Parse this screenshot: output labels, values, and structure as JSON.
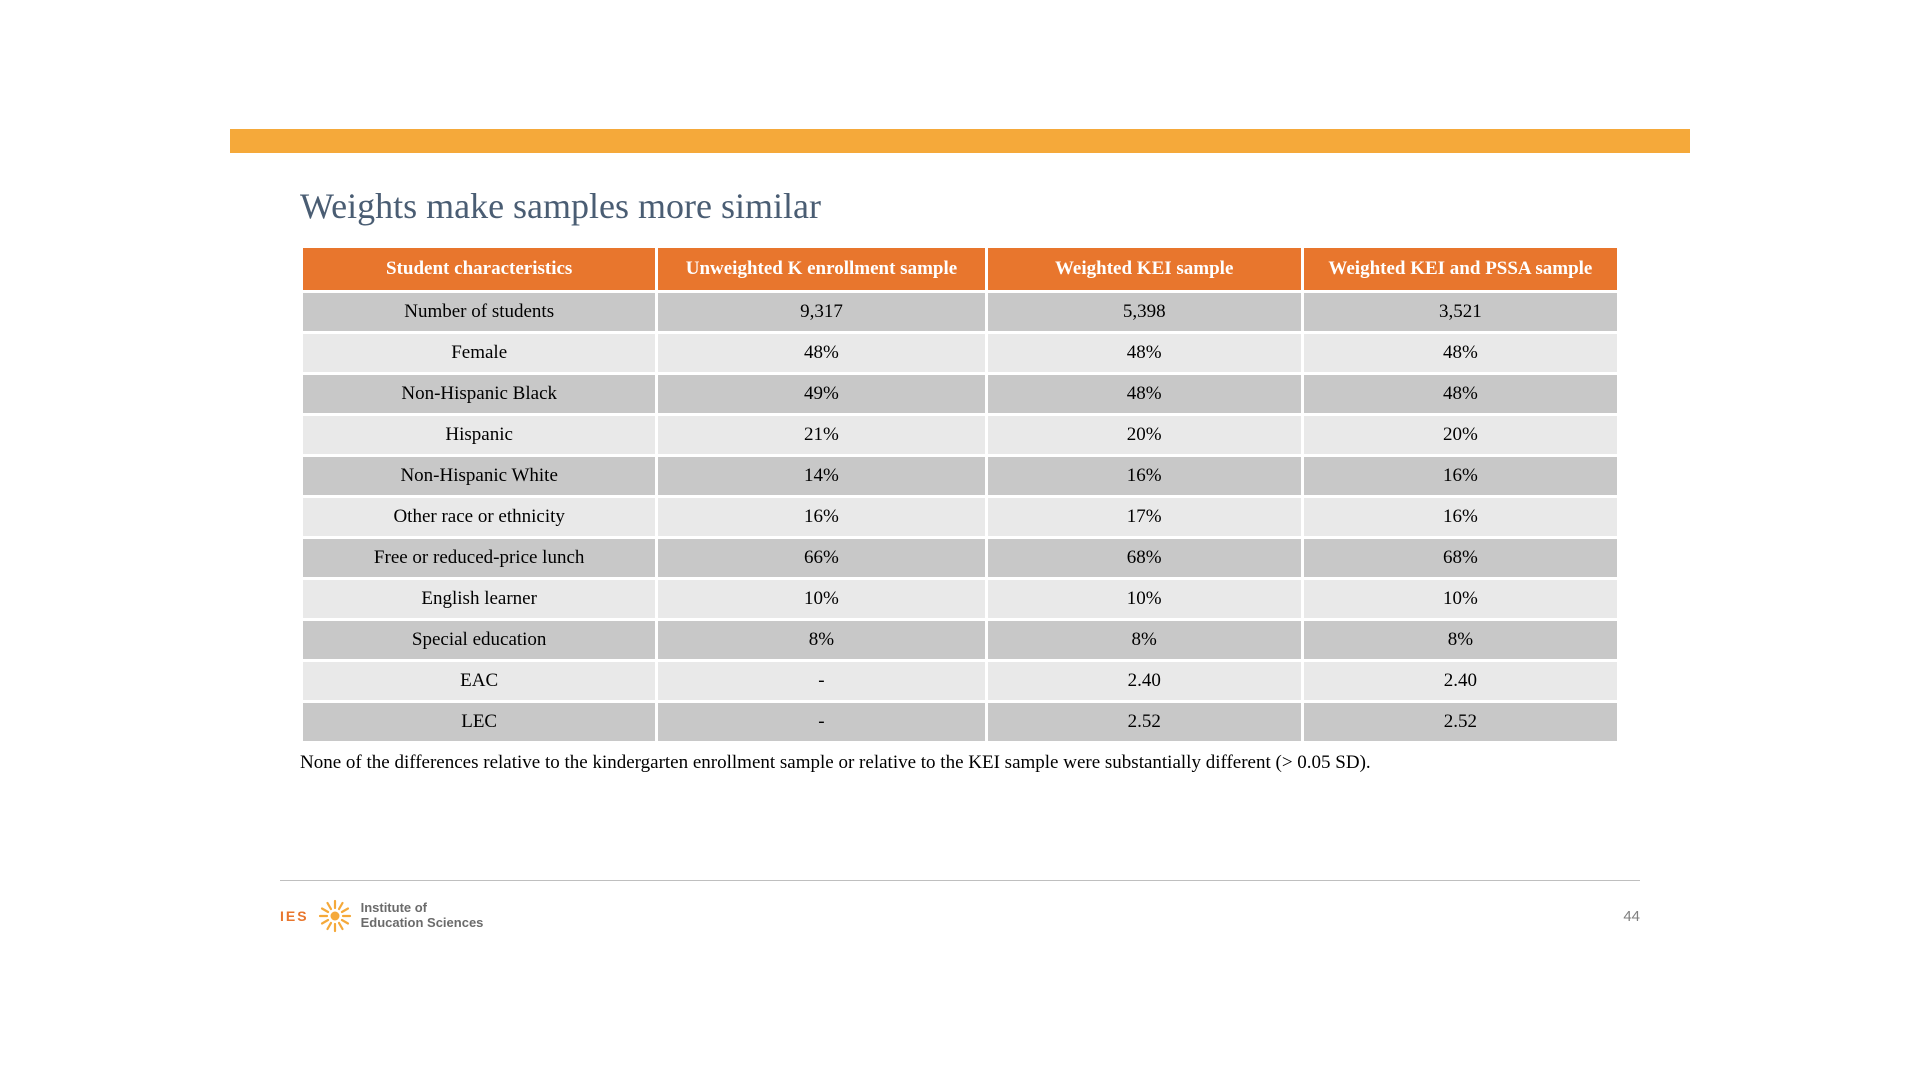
{
  "slide": {
    "title": "Weights make samples more similar",
    "title_color": "#4a5d73",
    "top_bar_color": "#f5a93a",
    "page_number": "44",
    "page_number_color": "#808080",
    "footnote": "None of the differences relative to the kindergarten enrollment sample or relative to the KEI sample were substantially different (> 0.05 SD)."
  },
  "table": {
    "header_bg": "#e8762d",
    "header_text_color": "#ffffff",
    "row_bg_odd": "#c8c8c8",
    "row_bg_even": "#e9e9e9",
    "cell_text_color": "#000000",
    "col_widths_pct": [
      27,
      25,
      24,
      24
    ],
    "columns": [
      "Student characteristics",
      "Unweighted K enrollment sample",
      "Weighted KEI sample",
      "Weighted KEI and PSSA sample"
    ],
    "rows": [
      [
        "Number of students",
        "9,317",
        "5,398",
        "3,521"
      ],
      [
        "Female",
        "48%",
        "48%",
        "48%"
      ],
      [
        "Non-Hispanic Black",
        "49%",
        "48%",
        "48%"
      ],
      [
        "Hispanic",
        "21%",
        "20%",
        "20%"
      ],
      [
        "Non-Hispanic White",
        "14%",
        "16%",
        "16%"
      ],
      [
        "Other race or ethnicity",
        "16%",
        "17%",
        "16%"
      ],
      [
        "Free or reduced-price lunch",
        "66%",
        "68%",
        "68%"
      ],
      [
        "English learner",
        "10%",
        "10%",
        "10%"
      ],
      [
        "Special education",
        "8%",
        "8%",
        "8%"
      ],
      [
        "EAC",
        "-",
        "2.40",
        "2.40"
      ],
      [
        "LEC",
        "-",
        "2.52",
        "2.52"
      ]
    ]
  },
  "logo": {
    "ies_label": "IES",
    "ies_color": "#e8762d",
    "sun_color": "#f5a93a",
    "inst_line1": "Institute of",
    "inst_line2": "Education Sciences",
    "inst_color": "#6b6b6b"
  }
}
